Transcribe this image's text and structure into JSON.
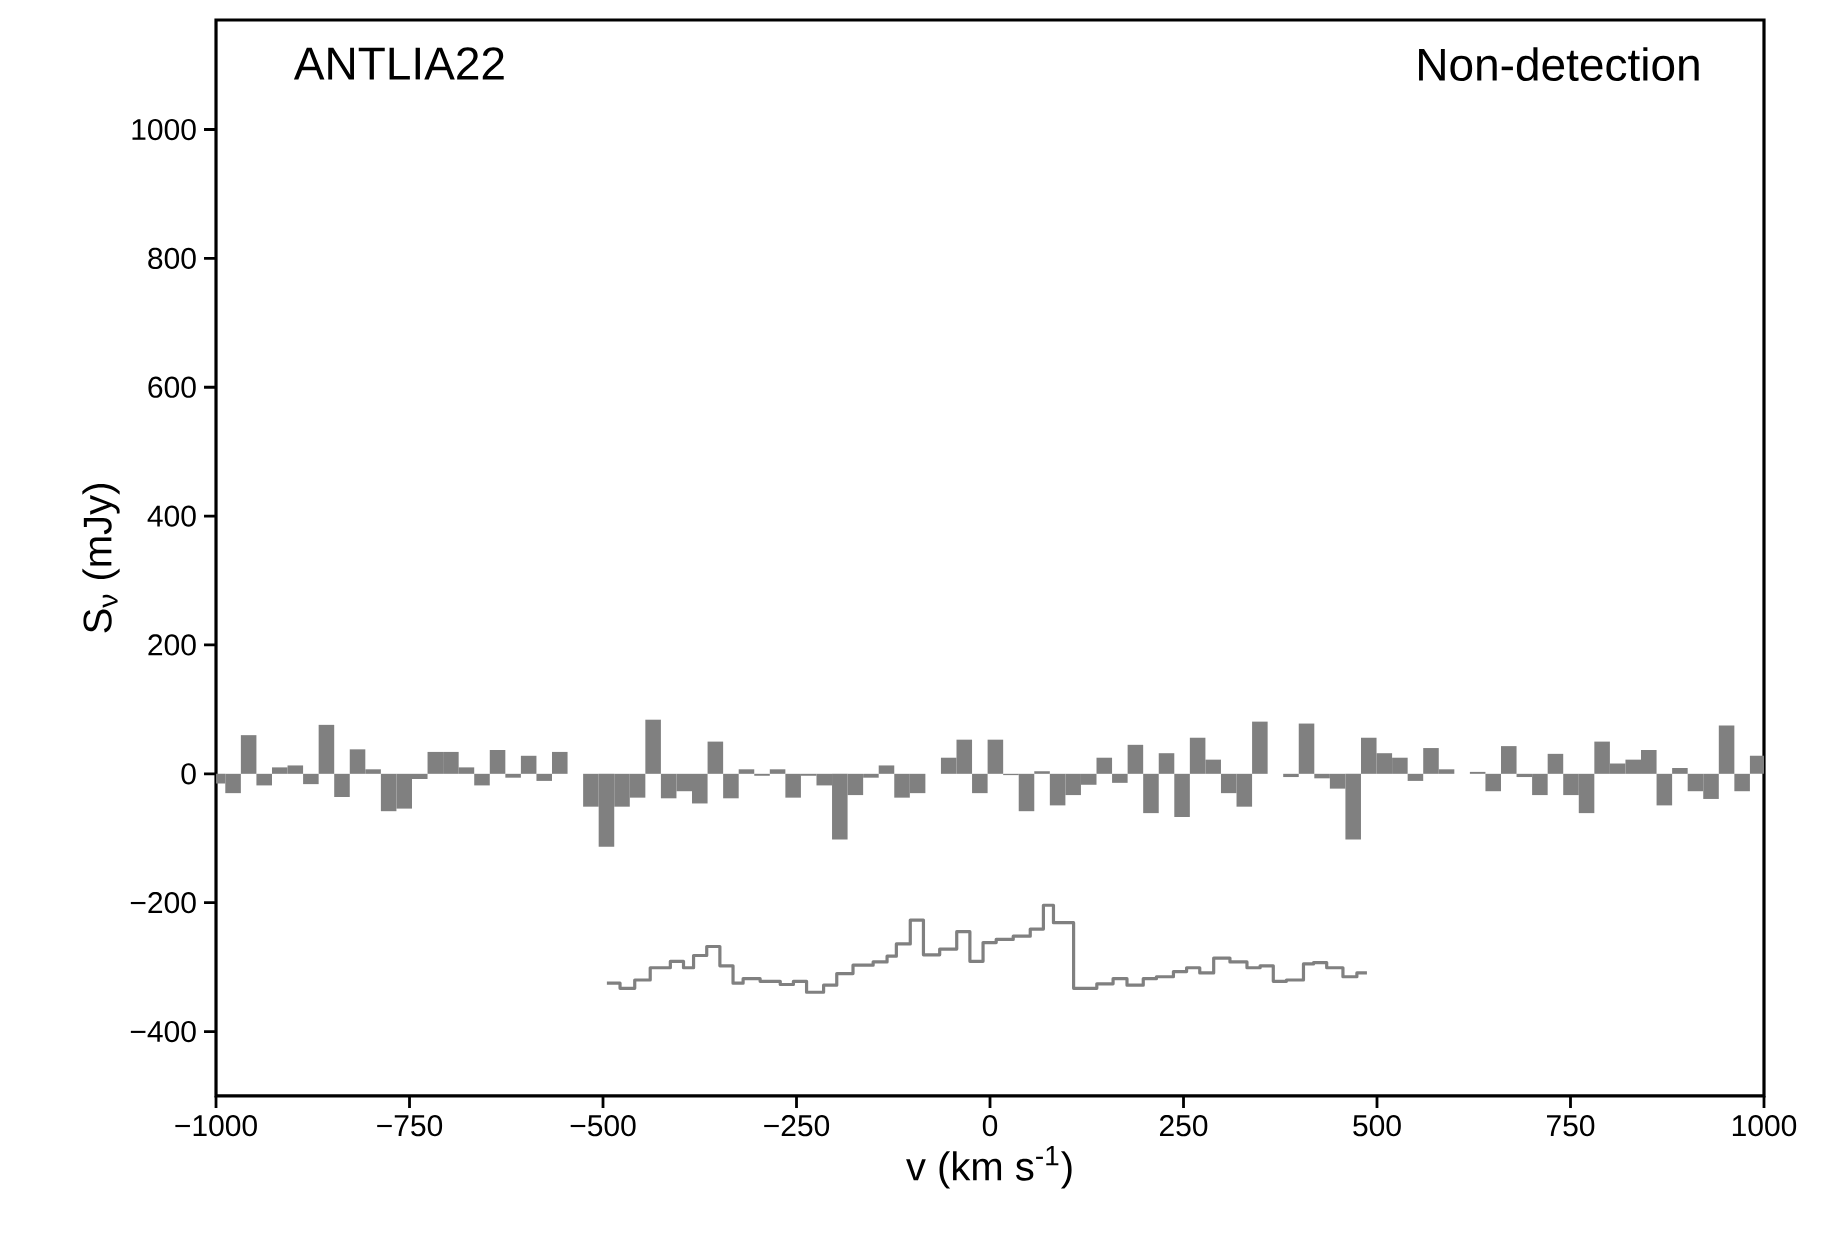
{
  "chart_data": {
    "type": "histogram",
    "xlabel": "v (km s$^{-1}$)",
    "ylabel": "S$_{ν}$ (mJy)",
    "color": "#808080",
    "annotations": [
      "ANTLIA22",
      "Non-detection"
    ],
    "xlim": [
      -1000,
      1000
    ],
    "ylim": [
      -500,
      1170
    ],
    "xticks": [
      {
        "value": -1000,
        "label": "−1000"
      },
      {
        "value": -750,
        "label": "−750"
      },
      {
        "value": -500,
        "label": "−500"
      },
      {
        "value": -250,
        "label": "−250"
      },
      0,
      250,
      500,
      750,
      1000
    ],
    "yticks": [
      {
        "value": -400,
        "label": "−400"
      },
      {
        "value": -200,
        "label": "−200"
      },
      0,
      200,
      400,
      600,
      800,
      1000
    ],
    "bins": [
      -1000,
      -988,
      -967.9,
      -947.8,
      -927.7,
      -907.6,
      -887.5,
      -867.4,
      -847.3,
      -827.2,
      -807.1,
      -787,
      -766.9,
      -746.8,
      -726.7,
      -706.6,
      -686.5,
      -666.4,
      -646.3,
      -626.2,
      -606.1,
      -586,
      -565.9,
      -545.8,
      -525.7,
      -505.6,
      -485.5,
      -465.4,
      -445.3,
      -425.2,
      -405.1,
      -385,
      -364.9,
      -344.8,
      -324.7,
      -304.6,
      -284.5,
      -264.4,
      -244.3,
      -224.2,
      -204.1,
      -184,
      -163.9,
      -143.8,
      -123.7,
      -103.6,
      -83.5,
      -63.4,
      -43.3,
      -23.2,
      -3.1,
      17,
      37.1,
      57.2,
      77.3,
      97.4,
      117.5,
      137.6,
      157.7,
      177.8,
      197.9,
      218,
      238.1,
      258.2,
      278.3,
      298.4,
      318.5,
      338.6,
      358.7,
      378.8,
      398.9,
      419,
      439.1,
      459.2,
      479.3,
      499.4,
      519.5,
      539.6,
      559.7,
      579.8,
      599.9,
      620,
      640.1,
      660.2,
      680.3,
      700.4,
      720.5,
      740.6,
      760.7,
      780.8,
      800.9,
      821,
      841.1,
      861.2,
      881.3,
      901.4,
      921.5,
      941.6,
      961.7,
      981.8,
      1000
    ],
    "values": [
      -15,
      -30,
      60,
      -18,
      10,
      13,
      -16,
      76,
      -36,
      38,
      7,
      -58,
      -54,
      -8,
      34,
      34,
      10,
      -18,
      37,
      -6,
      28,
      -11,
      34,
      null,
      -51,
      -113,
      -51,
      -37,
      84,
      -38,
      -27,
      -46,
      50,
      -38,
      7,
      -3,
      7,
      -37,
      -3,
      -18,
      -102,
      -33,
      -6,
      13,
      -37,
      -30,
      null,
      25,
      53,
      -30,
      53,
      -2,
      -58,
      4,
      -49,
      -33,
      -17,
      25,
      -14,
      45,
      -61,
      32,
      -67,
      56,
      22,
      -30,
      -51,
      81,
      null,
      -5,
      78,
      -7,
      -23,
      -102,
      56,
      32,
      25,
      -11,
      40,
      7,
      null,
      3,
      -27,
      43,
      -5,
      -33,
      31,
      -33,
      -61,
      50,
      16,
      22,
      37,
      -49,
      9,
      -27,
      -39,
      75,
      -27,
      28
    ],
    "series": [
      {
        "type": "step",
        "color": "#808080",
        "x": [
          -495,
          -478,
          -459,
          -439,
          -413,
          -396,
          -383,
          -366,
          -349,
          -332,
          -319,
          -297,
          -271,
          -254,
          -237,
          -215,
          -198,
          -177,
          -151,
          -133,
          -121,
          -103,
          -86,
          -65,
          -43,
          -26,
          -9,
          8,
          30,
          52,
          69,
          82,
          108,
          138,
          159,
          177,
          198,
          215,
          237,
          254,
          271,
          289,
          310,
          332,
          349,
          366,
          383,
          405,
          418,
          435,
          456,
          474,
          487
        ],
        "values": [
          -325,
          -333,
          -320,
          -301,
          -291,
          -301,
          -282,
          -268,
          -298,
          -325,
          -318,
          -322,
          -327,
          -322,
          -339,
          -328,
          -310,
          -297,
          -292,
          -283,
          -264,
          -227,
          -281,
          -272,
          -245,
          -291,
          -262,
          -257,
          -252,
          -241,
          -204,
          -231,
          -333,
          -326,
          -318,
          -328,
          -318,
          -315,
          -307,
          -301,
          -309,
          -286,
          -292,
          -301,
          -298,
          -322,
          -320,
          -295,
          -293,
          -301,
          -315,
          -309,
          -309
        ]
      }
    ]
  }
}
